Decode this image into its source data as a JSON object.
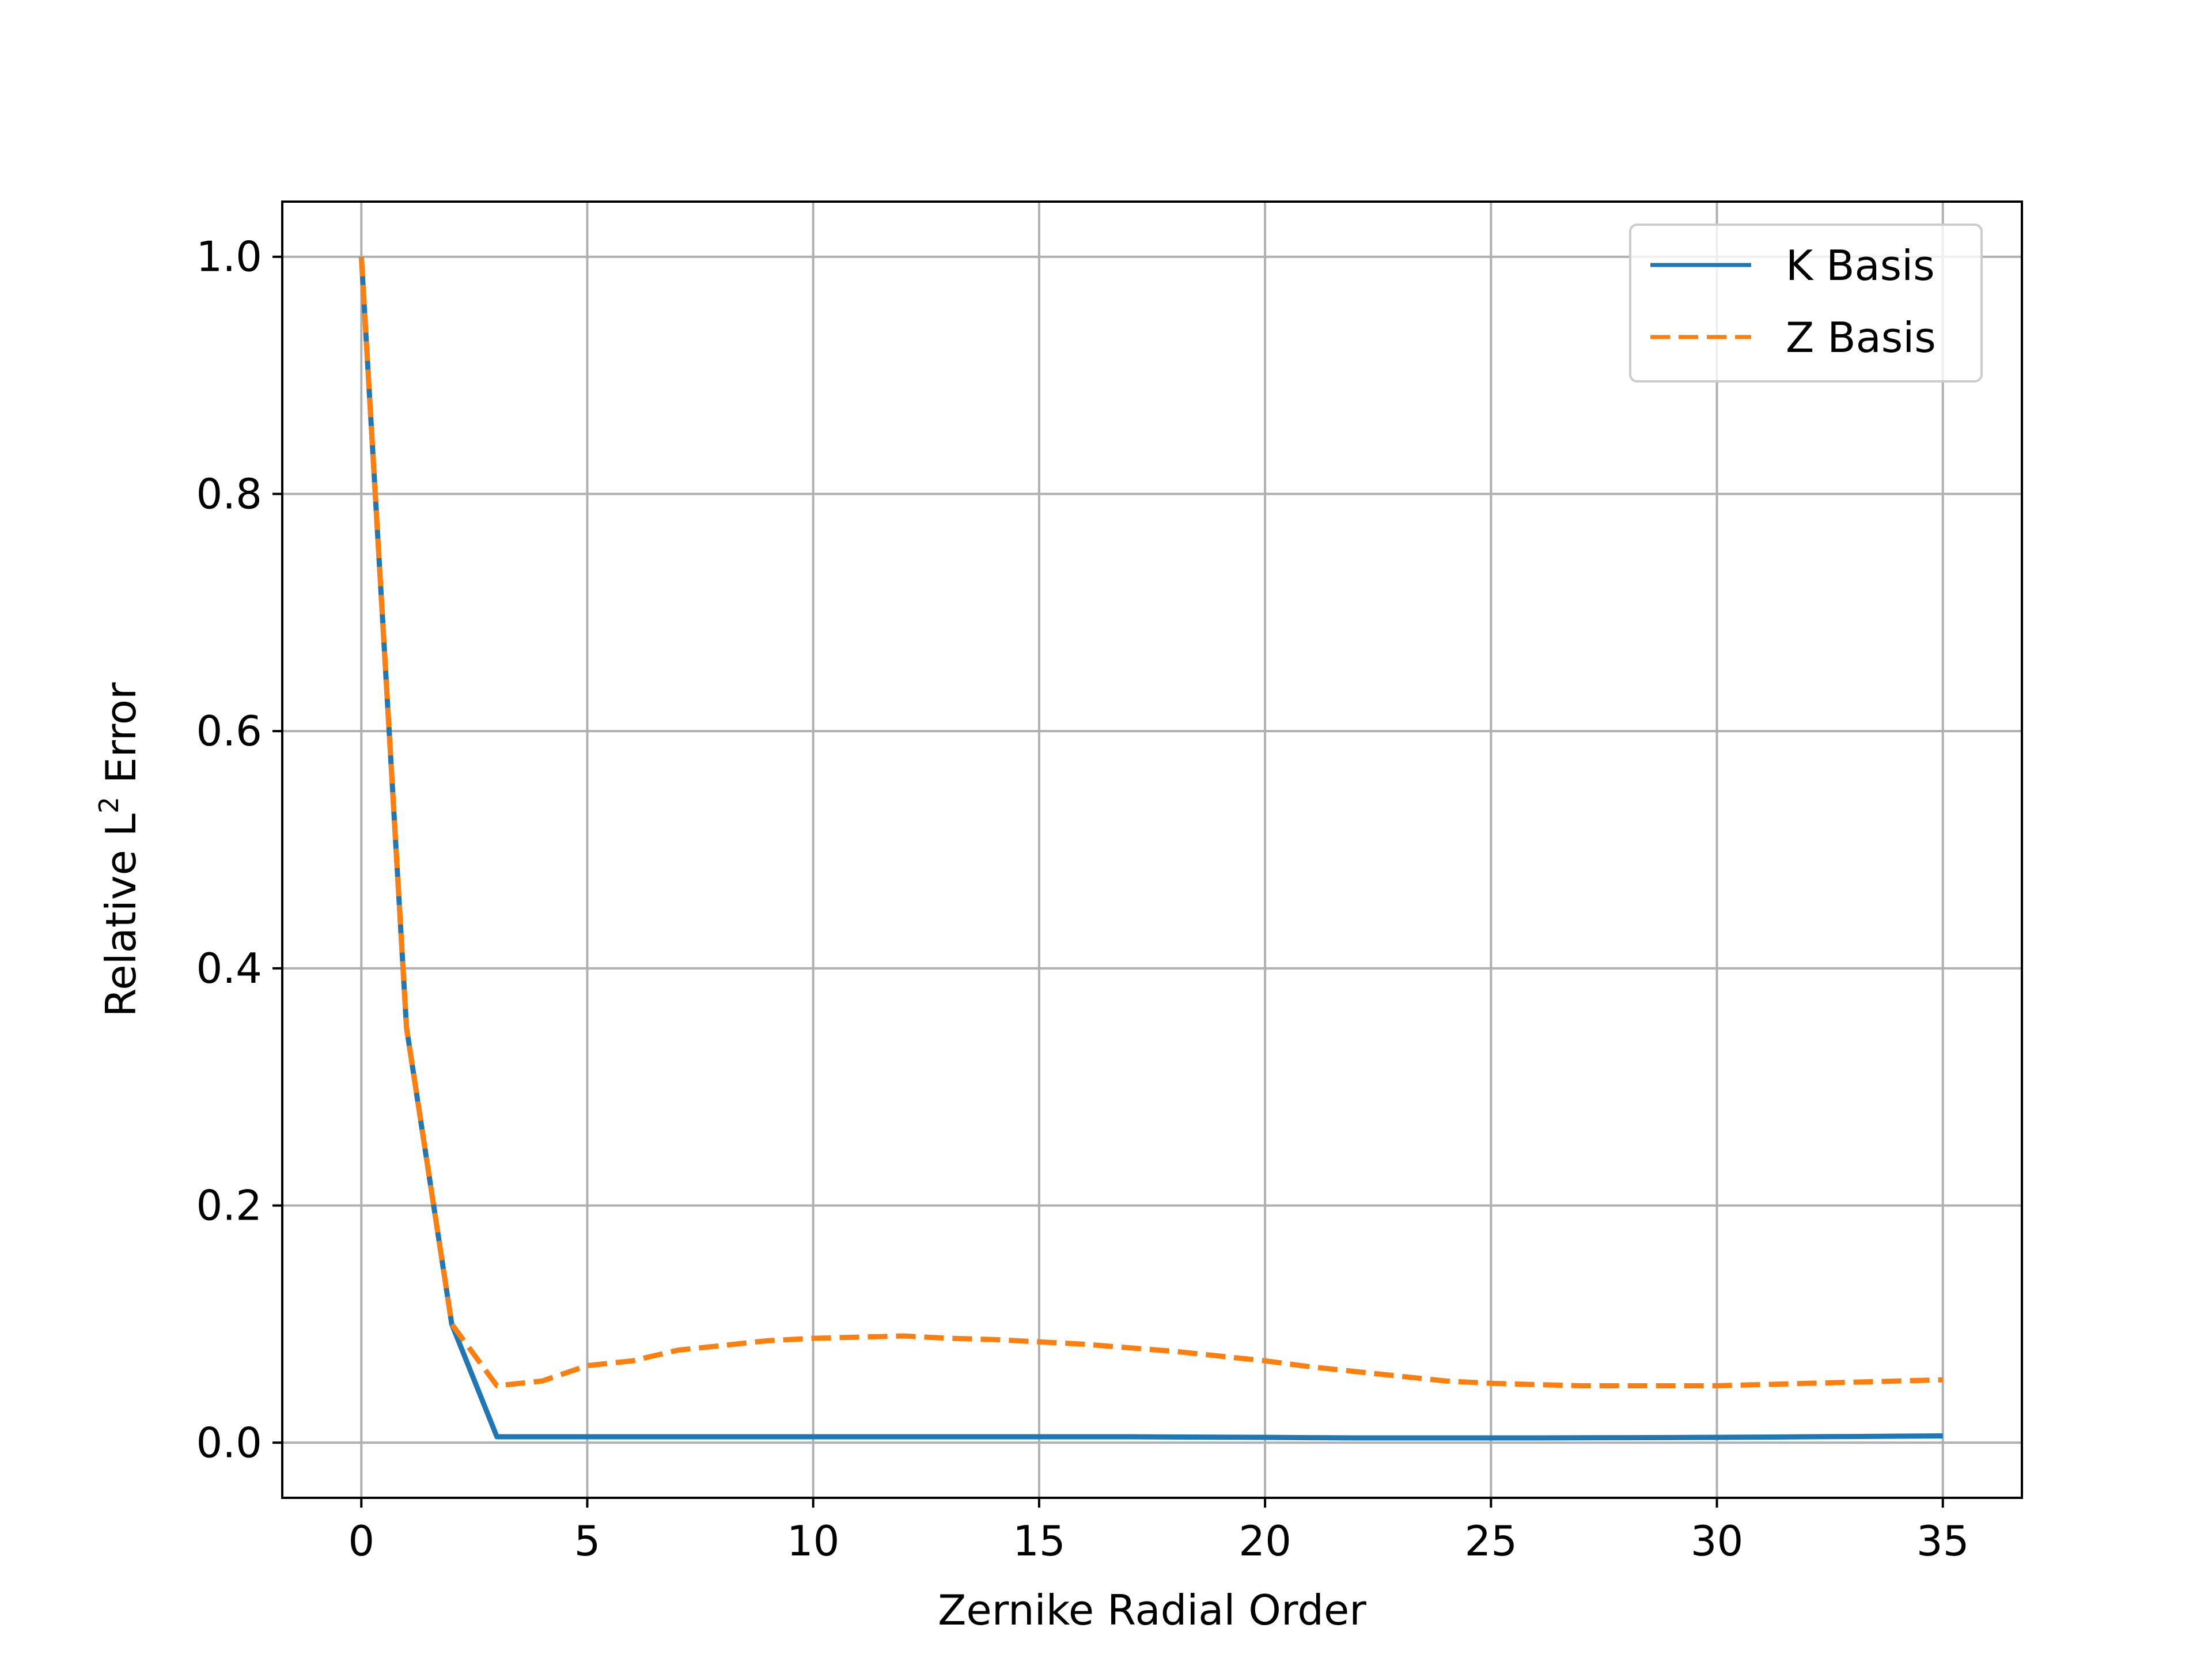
{
  "chart_data": {
    "type": "line",
    "title": "",
    "xlabel": "Zernike Radial Order",
    "ylabel": "Relative L² Error",
    "ylabel_base": "Relative L",
    "ylabel_sup": "2",
    "ylabel_tail": " Error",
    "xlim": [
      -1.75,
      36.75
    ],
    "ylim": [
      -0.0465,
      1.0465
    ],
    "xticks": [
      0,
      5,
      10,
      15,
      20,
      25,
      30,
      35
    ],
    "xtick_labels": [
      "0",
      "5",
      "10",
      "15",
      "20",
      "25",
      "30",
      "35"
    ],
    "yticks": [
      0.0,
      0.2,
      0.4,
      0.6,
      0.8,
      1.0
    ],
    "ytick_labels": [
      "0.0",
      "0.2",
      "0.4",
      "0.6",
      "0.8",
      "1.0"
    ],
    "grid": true,
    "legend_position": "top-right",
    "x": [
      0,
      1,
      2,
      3,
      4,
      5,
      6,
      7,
      8,
      9,
      10,
      11,
      12,
      13,
      14,
      15,
      16,
      17,
      18,
      19,
      20,
      21,
      22,
      23,
      24,
      25,
      26,
      27,
      28,
      29,
      30,
      31,
      32,
      33,
      34,
      35
    ],
    "series": [
      {
        "name": "K Basis",
        "color": "#1f77b4",
        "style": "solid",
        "values": [
          1.0,
          0.35,
          0.1,
          0.005,
          0.005,
          0.005,
          0.005,
          0.005,
          0.005,
          0.005,
          0.005,
          0.005,
          0.005,
          0.005,
          0.005,
          0.005,
          0.005,
          0.005,
          0.0048,
          0.0046,
          0.0045,
          0.0042,
          0.004,
          0.004,
          0.004,
          0.004,
          0.004,
          0.0041,
          0.0042,
          0.0043,
          0.0045,
          0.0047,
          0.005,
          0.0052,
          0.0055,
          0.0057
        ]
      },
      {
        "name": "Z Basis",
        "color": "#ff7f0e",
        "style": "dashed",
        "values": [
          1.0,
          0.35,
          0.1,
          0.048,
          0.052,
          0.065,
          0.069,
          0.078,
          0.082,
          0.086,
          0.088,
          0.089,
          0.09,
          0.088,
          0.087,
          0.085,
          0.083,
          0.08,
          0.077,
          0.073,
          0.069,
          0.064,
          0.06,
          0.056,
          0.052,
          0.05,
          0.049,
          0.048,
          0.048,
          0.048,
          0.048,
          0.049,
          0.05,
          0.051,
          0.052,
          0.053
        ]
      }
    ]
  }
}
